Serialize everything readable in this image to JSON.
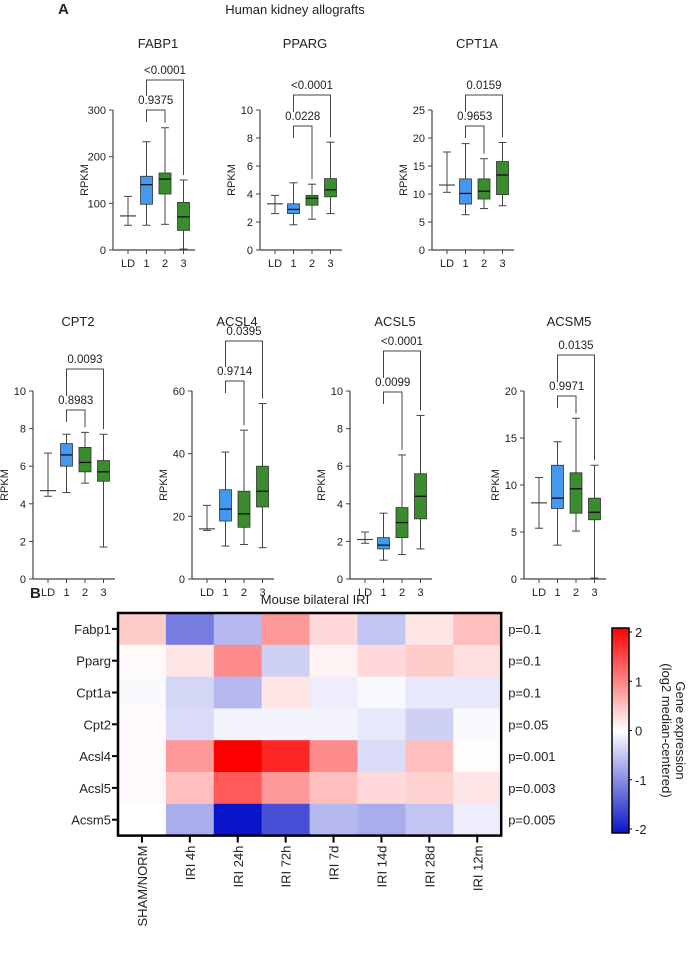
{
  "panel_a": {
    "letter": "A",
    "title": "Human kidney allografts"
  },
  "panel_b": {
    "letter": "B",
    "title": "Mouse bilateral IRI"
  },
  "colors": {
    "group1": "#4499ee",
    "group2_3": "#3b8c2e",
    "line": "#444444",
    "heat_high": "#ff0000",
    "heat_mid": "#ffffff",
    "heat_low": "#0a14c8"
  },
  "chart_data": [
    {
      "type": "box",
      "title": "FABP1",
      "ylabel": "RPKM",
      "categories": [
        "LD",
        "1",
        "2",
        "3"
      ],
      "ylim": [
        0,
        300
      ],
      "yticks": [
        "0",
        "100",
        "200",
        "300"
      ],
      "groups": [
        {
          "min": 53,
          "median": 73,
          "max": 115
        },
        {
          "min": 53,
          "q1": 98,
          "median": 140,
          "q3": 158,
          "max": 232
        },
        {
          "min": 55,
          "q1": 120,
          "median": 152,
          "q3": 165,
          "max": 262
        },
        {
          "min": 2,
          "q1": 42,
          "median": 71,
          "q3": 102,
          "max": 150
        }
      ],
      "comparisons": [
        {
          "pair": [
            "1",
            "2"
          ],
          "p": "0.9375"
        },
        {
          "pair": [
            "1",
            "3"
          ],
          "p": "<0.0001"
        }
      ]
    },
    {
      "type": "box",
      "title": "PPARG",
      "ylabel": "RPKM",
      "categories": [
        "LD",
        "1",
        "2",
        "3"
      ],
      "ylim": [
        0,
        10
      ],
      "yticks": [
        "0",
        "2",
        "4",
        "6",
        "8",
        "10"
      ],
      "groups": [
        {
          "min": 2.6,
          "median": 3.3,
          "max": 3.9
        },
        {
          "min": 1.8,
          "q1": 2.6,
          "median": 2.9,
          "q3": 3.3,
          "max": 4.8
        },
        {
          "min": 2.2,
          "q1": 3.2,
          "median": 3.7,
          "q3": 3.9,
          "max": 4.7
        },
        {
          "min": 2.6,
          "q1": 3.8,
          "median": 4.3,
          "q3": 5.1,
          "max": 7.7
        }
      ],
      "comparisons": [
        {
          "pair": [
            "1",
            "2"
          ],
          "p": "0.0228"
        },
        {
          "pair": [
            "1",
            "3"
          ],
          "p": "<0.0001"
        }
      ]
    },
    {
      "type": "box",
      "title": "CPT1A",
      "ylabel": "RPKM",
      "categories": [
        "LD",
        "1",
        "2",
        "3"
      ],
      "ylim": [
        0,
        25
      ],
      "yticks": [
        "0",
        "5",
        "10",
        "15",
        "20",
        "25"
      ],
      "groups": [
        {
          "min": 10.3,
          "median": 11.6,
          "max": 17.5
        },
        {
          "min": 6.3,
          "q1": 8.2,
          "median": 10.1,
          "q3": 12.7,
          "max": 19
        },
        {
          "min": 7.4,
          "q1": 9.1,
          "median": 10.5,
          "q3": 12.7,
          "max": 16.3
        },
        {
          "min": 7.9,
          "q1": 9.9,
          "median": 13.4,
          "q3": 15.8,
          "max": 19.2
        }
      ],
      "comparisons": [
        {
          "pair": [
            "1",
            "2"
          ],
          "p": "0.9653"
        },
        {
          "pair": [
            "1",
            "3"
          ],
          "p": "0.0159"
        }
      ]
    },
    {
      "type": "box",
      "title": "CPT2",
      "ylabel": "RPKM",
      "categories": [
        "LD",
        "1",
        "2",
        "3"
      ],
      "ylim": [
        0,
        10
      ],
      "yticks": [
        "0",
        "2",
        "4",
        "6",
        "8",
        "10"
      ],
      "groups": [
        {
          "min": 4.4,
          "median": 4.7,
          "max": 6.7
        },
        {
          "min": 4.6,
          "q1": 6.0,
          "median": 6.6,
          "q3": 7.2,
          "max": 7.7
        },
        {
          "min": 5.1,
          "q1": 5.7,
          "median": 6.2,
          "q3": 7.0,
          "max": 7.8
        },
        {
          "min": 1.7,
          "q1": 5.2,
          "median": 5.7,
          "q3": 6.3,
          "max": 7.7
        }
      ],
      "comparisons": [
        {
          "pair": [
            "1",
            "2"
          ],
          "p": "0.8983"
        },
        {
          "pair": [
            "1",
            "3"
          ],
          "p": "0.0093"
        }
      ]
    },
    {
      "type": "box",
      "title": "ACSL4",
      "ylabel": "RPKM",
      "categories": [
        "LD",
        "1",
        "2",
        "3"
      ],
      "ylim": [
        0,
        60
      ],
      "yticks": [
        "0",
        "20",
        "40",
        "60"
      ],
      "groups": [
        {
          "min": 15.5,
          "median": 16,
          "max": 23.5
        },
        {
          "min": 10.5,
          "q1": 18.5,
          "median": 22.3,
          "q3": 28.5,
          "max": 40.5
        },
        {
          "min": 11,
          "q1": 16.5,
          "median": 20.8,
          "q3": 28,
          "max": 47.5
        },
        {
          "min": 10,
          "q1": 23,
          "median": 28,
          "q3": 36,
          "max": 56
        }
      ],
      "comparisons": [
        {
          "pair": [
            "1",
            "2"
          ],
          "p": "0.9714"
        },
        {
          "pair": [
            "1",
            "3"
          ],
          "p": "0.0395"
        }
      ]
    },
    {
      "type": "box",
      "title": "ACSL5",
      "ylabel": "RPKM",
      "categories": [
        "LD",
        "1",
        "2",
        "3"
      ],
      "ylim": [
        0,
        10
      ],
      "yticks": [
        "0",
        "2",
        "4",
        "6",
        "8",
        "10"
      ],
      "groups": [
        {
          "min": 1.9,
          "median": 2.1,
          "max": 2.5
        },
        {
          "min": 1.0,
          "q1": 1.6,
          "median": 1.8,
          "q3": 2.2,
          "max": 3.5
        },
        {
          "min": 1.3,
          "q1": 2.2,
          "median": 3.0,
          "q3": 3.8,
          "max": 6.6
        },
        {
          "min": 1.6,
          "q1": 3.2,
          "median": 4.4,
          "q3": 5.6,
          "max": 8.7
        }
      ],
      "comparisons": [
        {
          "pair": [
            "1",
            "2"
          ],
          "p": "0.0099"
        },
        {
          "pair": [
            "1",
            "3"
          ],
          "p": "<0.0001"
        }
      ]
    },
    {
      "type": "box",
      "title": "ACSM5",
      "ylabel": "RPKM",
      "categories": [
        "LD",
        "1",
        "2",
        "3"
      ],
      "ylim": [
        0,
        20
      ],
      "yticks": [
        "0",
        "5",
        "10",
        "15",
        "20"
      ],
      "groups": [
        {
          "min": 5.4,
          "median": 8.1,
          "max": 10.8
        },
        {
          "min": 3.6,
          "q1": 7.5,
          "median": 8.6,
          "q3": 12.1,
          "max": 14.6
        },
        {
          "min": 5.1,
          "q1": 7.0,
          "median": 9.6,
          "q3": 11.3,
          "max": 17.1
        },
        {
          "min": 0.1,
          "q1": 6.3,
          "median": 7.1,
          "q3": 8.6,
          "max": 12.1
        }
      ],
      "comparisons": [
        {
          "pair": [
            "1",
            "2"
          ],
          "p": "0.9971"
        },
        {
          "pair": [
            "1",
            "3"
          ],
          "p": "0.0135"
        }
      ]
    },
    {
      "type": "heatmap",
      "title": "Mouse bilateral IRI",
      "rows": [
        "Fabp1",
        "Pparg",
        "Cpt1a",
        "Cpt2",
        "Acsl4",
        "Acsl5",
        "Acsm5"
      ],
      "columns": [
        "SHAM/NORM",
        "IRI 4h",
        "IRI 24h",
        "IRI 72h",
        "IRI 7d",
        "IRI 14d",
        "IRI 28d",
        "IRI 12m"
      ],
      "values": [
        [
          0.4,
          -1.1,
          -0.6,
          0.8,
          0.3,
          -0.5,
          0.2,
          0.5
        ],
        [
          0.05,
          0.2,
          0.9,
          -0.4,
          0.1,
          0.3,
          0.4,
          0.25
        ],
        [
          -0.05,
          -0.35,
          -0.6,
          0.2,
          -0.15,
          -0.05,
          -0.2,
          -0.2
        ],
        [
          0.05,
          -0.3,
          -0.1,
          -0.1,
          -0.1,
          -0.2,
          -0.4,
          -0.05
        ],
        [
          0.05,
          0.8,
          2.0,
          1.7,
          0.9,
          -0.3,
          0.5,
          0.02
        ],
        [
          0.05,
          0.5,
          1.3,
          0.8,
          0.5,
          0.3,
          0.35,
          0.2
        ],
        [
          0,
          -0.7,
          -2.0,
          -1.5,
          -0.6,
          -0.7,
          -0.5,
          -0.15
        ]
      ],
      "row_pvalues": [
        "p=0.1",
        "p=0.1",
        "p=0.1",
        "p=0.05",
        "p=0.001",
        "p=0.003",
        "p=0.005"
      ],
      "colorbar": {
        "range": [
          -2,
          2
        ],
        "ticks": [
          "2",
          "1",
          "0",
          "-1",
          "-2"
        ],
        "label_line1": "Gene expression",
        "label_line2": "(log2 median-centered)"
      }
    }
  ]
}
